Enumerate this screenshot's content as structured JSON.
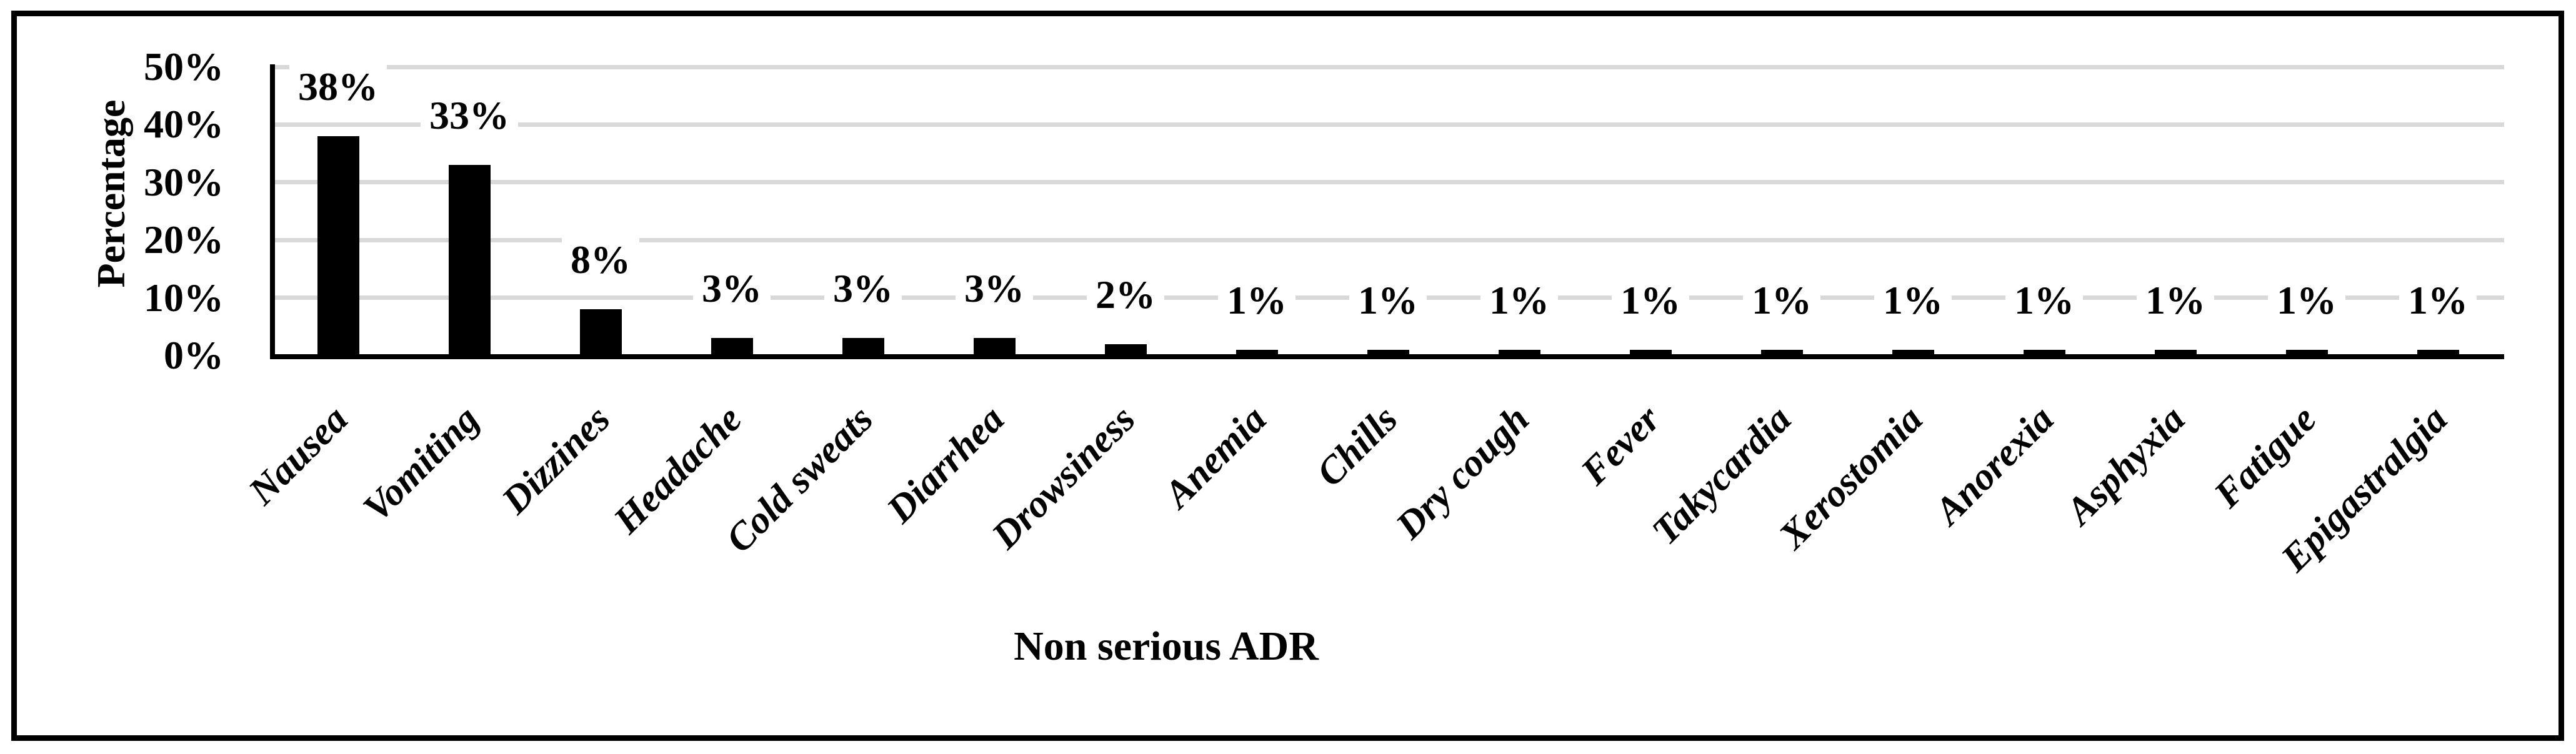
{
  "figure": {
    "background_color": "#ffffff",
    "border_color": "#000000",
    "text_color": "#000000"
  },
  "chart_data": {
    "type": "bar",
    "title": "",
    "xlabel": "Non serious ADR",
    "ylabel": "Percentage",
    "categories": [
      "Nausea",
      "Vomiting",
      "Dizzines",
      "Headache",
      "Cold sweats",
      "Diarrhea",
      "Drowsiness",
      "Anemia",
      "Chills",
      "Dry cough",
      "Fever",
      "Takycardia",
      "Xerostomia",
      "Anorexia",
      "Asphyxia",
      "Fatigue",
      "Epigastralgia"
    ],
    "values": [
      38,
      33,
      8,
      3,
      3,
      3,
      2,
      1,
      1,
      1,
      1,
      1,
      1,
      1,
      1,
      1,
      1
    ],
    "data_labels": [
      "38%",
      "33%",
      "8%",
      "3%",
      "3%",
      "3%",
      "2%",
      "1%",
      "1%",
      "1%",
      "1%",
      "1%",
      "1%",
      "1%",
      "1%",
      "1%",
      "1%"
    ],
    "y_ticks": [
      "0%",
      "10%",
      "20%",
      "30%",
      "40%",
      "50%"
    ],
    "ylim": [
      0,
      50
    ],
    "grid": true,
    "legend_position": "none",
    "bar_color": "#000000",
    "gridline_color": "#d9d9d9",
    "axis_color": "#000000"
  }
}
